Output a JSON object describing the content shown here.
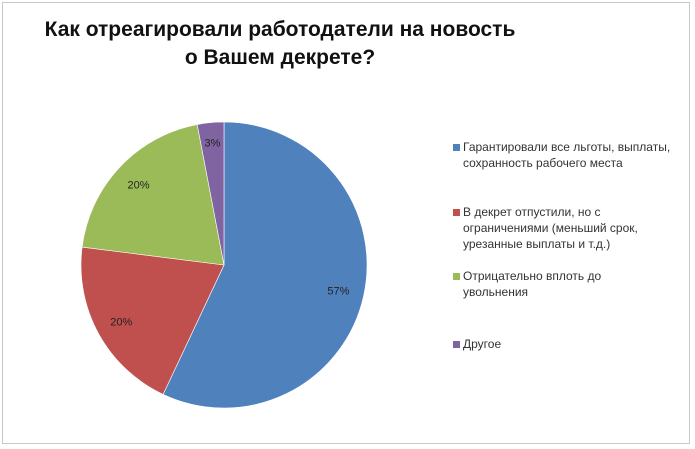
{
  "chart_data": {
    "type": "pie",
    "title": "Как отреагировали работодатели на новость о Вашем декрете?",
    "title_lines": [
      "Как отреагировали работодатели на новость",
      "о Вашем декрете?"
    ],
    "categories": [
      "Гарантировали все льготы, выплаты, сохранность рабочего места",
      "В декрет отпустили, но с ограничениями (меньший срок, урезанные выплаты и т.д.)",
      "Отрицательно вплоть до увольнения",
      "Другое"
    ],
    "values": [
      57,
      20,
      20,
      3
    ],
    "data_labels": [
      "57%",
      "20%",
      "20%",
      "3%"
    ],
    "colors": [
      "#4F81BD",
      "#C0504D",
      "#9BBB59",
      "#8064A2"
    ],
    "start": "top, clockwise",
    "legend_position": "right"
  }
}
